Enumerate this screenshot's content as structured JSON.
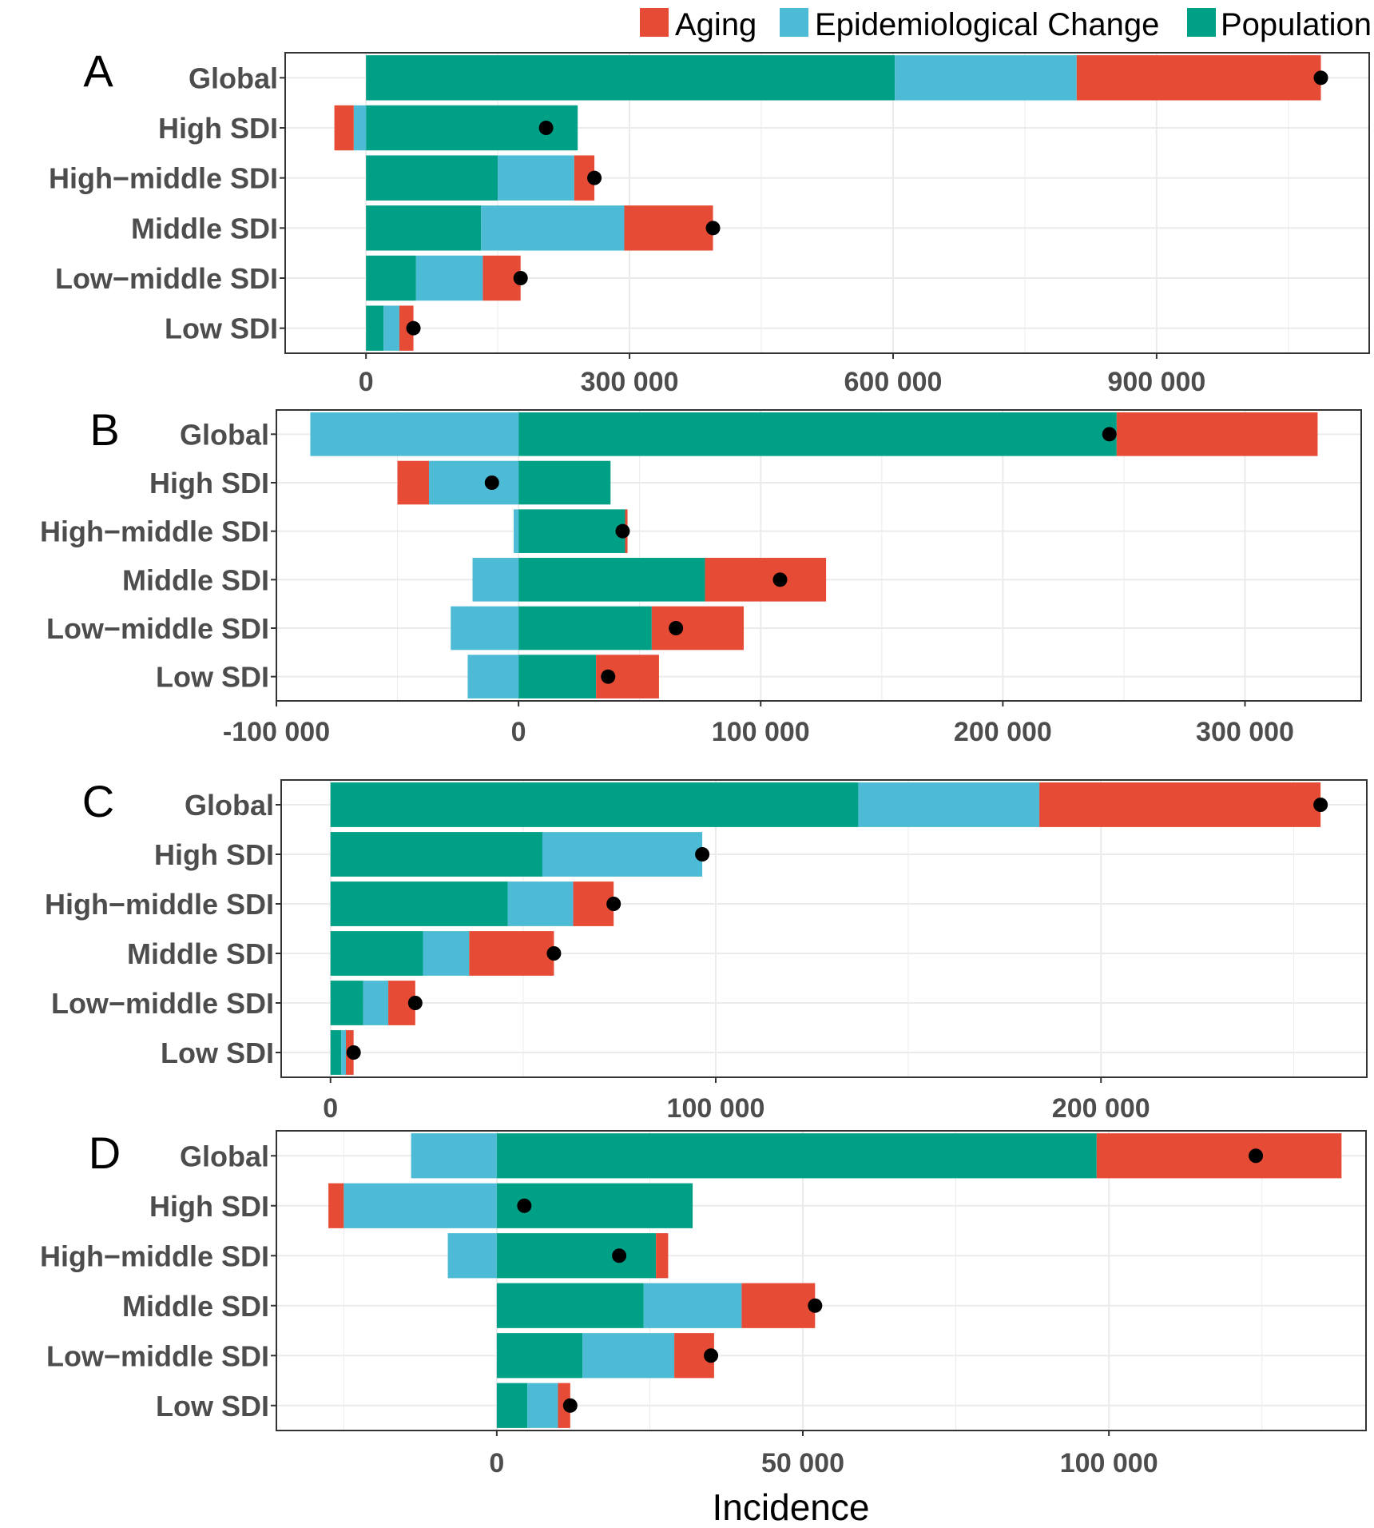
{
  "chart_data": {
    "type": "bar",
    "subtype": "stacked-horizontal-decomposition",
    "xlabel": "Incidence",
    "colors": {
      "Aging": "#E64B35",
      "Epidemiological Change": "#4DBBD5",
      "Population": "#00A087",
      "total_point": "#000000",
      "grid": "#ebebeb",
      "panel_border": "#333333"
    },
    "legend": [
      "Aging",
      "Epidemiological Change",
      "Population"
    ],
    "legend_position": "top-right",
    "categories": [
      "Global",
      "High SDI",
      "High−middle SDI",
      "Middle SDI",
      "Low−middle SDI",
      "Low SDI"
    ],
    "panels": [
      {
        "label": "A",
        "xlim": [
          -92000,
          1142000
        ],
        "ticks": [
          0,
          300000,
          600000,
          900000
        ],
        "tick_labels": [
          "0",
          "300 000",
          "600 000",
          "900 000"
        ],
        "series": [
          {
            "name": "Population",
            "values": [
              602000,
              241000,
              150000,
              131000,
              57000,
              20000
            ]
          },
          {
            "name": "Epidemiological Change",
            "values": [
              207000,
              -14000,
              87000,
              163000,
              76000,
              18000
            ]
          },
          {
            "name": "Aging",
            "values": [
              278000,
              -22000,
              23000,
              101000,
              43000,
              16000
            ]
          }
        ],
        "totals": [
          1087000,
          205000,
          260000,
          395000,
          176000,
          54000
        ]
      },
      {
        "label": "B",
        "xlim": [
          -100000,
          348000
        ],
        "ticks": [
          -100000,
          0,
          100000,
          200000,
          300000
        ],
        "tick_labels": [
          "-100 000",
          "0",
          "100 000",
          "200 000",
          "300 000"
        ],
        "series": [
          {
            "name": "Population",
            "values": [
              247000,
              38000,
              44000,
              77000,
              55000,
              32000
            ]
          },
          {
            "name": "Epidemiological Change",
            "values": [
              -86000,
              -37000,
              -2000,
              -19000,
              -28000,
              -21000
            ]
          },
          {
            "name": "Aging",
            "values": [
              83000,
              -13000,
              1000,
              50000,
              38000,
              26000
            ]
          }
        ],
        "totals": [
          244000,
          -11000,
          43000,
          108000,
          65000,
          37000
        ]
      },
      {
        "label": "C",
        "xlim": [
          -12800,
          269000
        ],
        "ticks": [
          0,
          100000,
          200000
        ],
        "tick_labels": [
          "0",
          "100 000",
          "200 000"
        ],
        "series": [
          {
            "name": "Population",
            "values": [
              137000,
              55000,
              46000,
              24000,
              8500,
              2800
            ]
          },
          {
            "name": "Epidemiological Change",
            "values": [
              47000,
              41500,
              17000,
              12000,
              6500,
              1200
            ]
          },
          {
            "name": "Aging",
            "values": [
              73000,
              0,
              10500,
              22000,
              7000,
              2000
            ]
          }
        ],
        "totals": [
          257000,
          96500,
          73500,
          58000,
          22000,
          6000
        ]
      },
      {
        "label": "D",
        "xlim": [
          -36000,
          142000
        ],
        "ticks": [
          0,
          50000,
          100000
        ],
        "tick_labels": [
          "0",
          "50 000",
          "100 000"
        ],
        "series": [
          {
            "name": "Population",
            "values": [
              98000,
              32000,
              26000,
              24000,
              14000,
              5000
            ]
          },
          {
            "name": "Epidemiological Change",
            "values": [
              -14000,
              -25000,
              -8000,
              16000,
              15000,
              5000
            ]
          },
          {
            "name": "Aging",
            "values": [
              40000,
              -2500,
              2000,
              12000,
              6500,
              2000
            ]
          }
        ],
        "totals": [
          124000,
          4500,
          20000,
          52000,
          35000,
          12000
        ]
      }
    ]
  }
}
